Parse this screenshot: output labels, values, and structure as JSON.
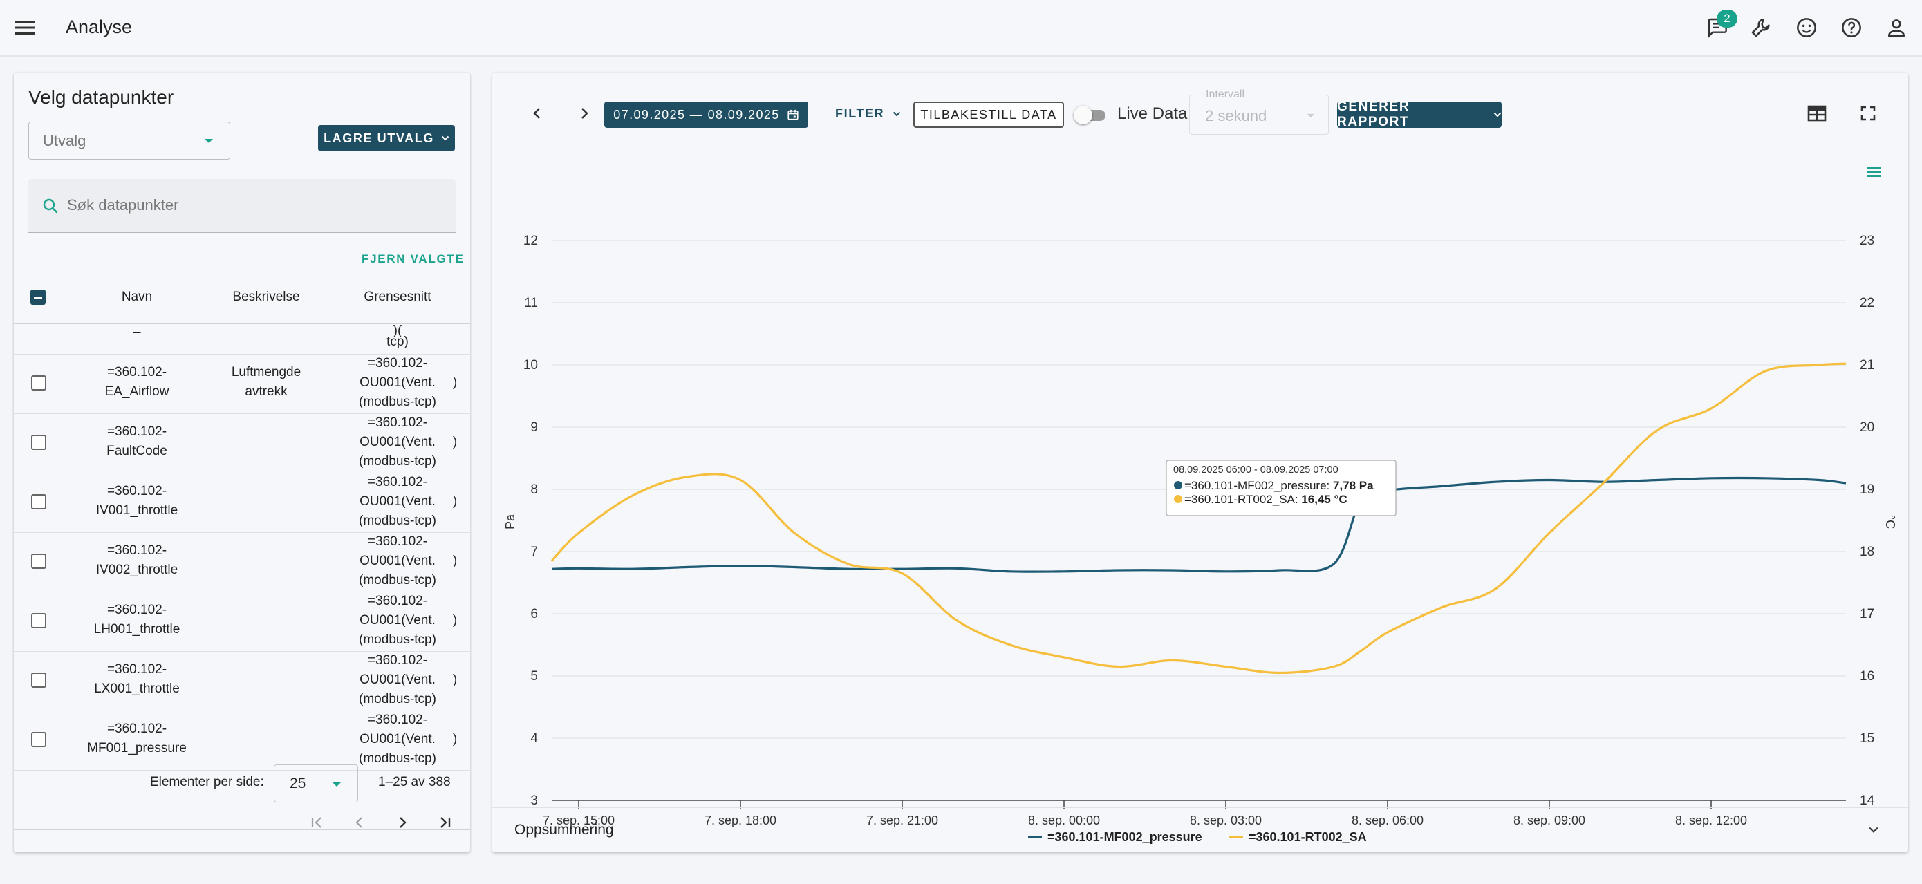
{
  "app": {
    "title": "Analyse",
    "notification_count": "2"
  },
  "left": {
    "title": "Velg datapunkter",
    "select_placeholder": "Utvalg",
    "save_selection": "LAGRE UTVALG",
    "search_placeholder": "Søk datapunkter",
    "remove_selected": "FJERN VALGTE",
    "columns": {
      "name": "Navn",
      "desc": "Beskrivelse",
      "iface": "Grensesnitt"
    },
    "partial_row": {
      "name": "_",
      "iface": "tcp)",
      "iface_top": ")("
    },
    "rows": [
      {
        "name1": "=360.102-",
        "name2": "EA_Airflow",
        "desc1": "Luftmengde",
        "desc2": "avtrekk",
        "if1": "=360.102-",
        "if2": "OU001(Vent.",
        "if3": "(modbus-tcp)",
        "paren": ")"
      },
      {
        "name1": "=360.102-",
        "name2": "FaultCode",
        "desc1": "",
        "desc2": "",
        "if1": "=360.102-",
        "if2": "OU001(Vent.",
        "if3": "(modbus-tcp)",
        "paren": ")"
      },
      {
        "name1": "=360.102-",
        "name2": "IV001_throttle",
        "desc1": "",
        "desc2": "",
        "if1": "=360.102-",
        "if2": "OU001(Vent.",
        "if3": "(modbus-tcp)",
        "paren": ")"
      },
      {
        "name1": "=360.102-",
        "name2": "IV002_throttle",
        "desc1": "",
        "desc2": "",
        "if1": "=360.102-",
        "if2": "OU001(Vent.",
        "if3": "(modbus-tcp)",
        "paren": ")"
      },
      {
        "name1": "=360.102-",
        "name2": "LH001_throttle",
        "desc1": "",
        "desc2": "",
        "if1": "=360.102-",
        "if2": "OU001(Vent.",
        "if3": "(modbus-tcp)",
        "paren": ")"
      },
      {
        "name1": "=360.102-",
        "name2": "LX001_throttle",
        "desc1": "",
        "desc2": "",
        "if1": "=360.102-",
        "if2": "OU001(Vent.",
        "if3": "(modbus-tcp)",
        "paren": ")"
      },
      {
        "name1": "=360.102-",
        "name2": "MF001_pressure",
        "desc1": "",
        "desc2": "",
        "if1": "=360.102-",
        "if2": "OU001(Vent.",
        "if3": "(modbus-tcp)",
        "paren": ")"
      }
    ],
    "per_page_label": "Elementer per side:",
    "per_page_value": "25",
    "range": "1–25 av 388"
  },
  "toolbar": {
    "date_range": "07.09.2025 — 08.09.2025",
    "filter": "FILTER",
    "reset": "TILBAKESTILL DATA",
    "live_label": "Live Data",
    "interval_label": "Intervall",
    "interval_value": "2 sekund",
    "report": "GENERER RAPPORT"
  },
  "chart_data": {
    "type": "line",
    "xlabels": [
      "7. sep. 15:00",
      "7. sep. 18:00",
      "7. sep. 21:00",
      "8. sep. 00:00",
      "8. sep. 03:00",
      "8. sep. 06:00",
      "8. sep. 09:00",
      "8. sep. 12:00"
    ],
    "x_hours": [
      14.5,
      15,
      16,
      17,
      18,
      19,
      20,
      21,
      22,
      23,
      24,
      25,
      26,
      27,
      28,
      29,
      29.5,
      30,
      31,
      32,
      33,
      34,
      35,
      36,
      37,
      38,
      38.5
    ],
    "y_left": {
      "label": "Pa",
      "range": [
        3,
        12
      ],
      "ticks": [
        "3",
        "4",
        "5",
        "6",
        "7",
        "8",
        "9",
        "10",
        "11",
        "12"
      ]
    },
    "y_right": {
      "label": "°C",
      "range": [
        14,
        23
      ],
      "ticks": [
        "14",
        "15",
        "16",
        "17",
        "18",
        "19",
        "20",
        "21",
        "22",
        "23"
      ]
    },
    "series": [
      {
        "name": "=360.101-MF002_pressure",
        "color": "#1f5a74",
        "axis": "left",
        "values": [
          6.72,
          6.73,
          6.72,
          6.75,
          6.77,
          6.75,
          6.72,
          6.72,
          6.73,
          6.68,
          6.68,
          6.7,
          6.7,
          6.68,
          6.7,
          6.8,
          7.8,
          7.98,
          8.05,
          8.12,
          8.15,
          8.12,
          8.15,
          8.18,
          8.18,
          8.15,
          8.1
        ]
      },
      {
        "name": "=360.101-RT002_SA",
        "color": "#f5be3c",
        "axis": "right",
        "values": [
          17.85,
          18.3,
          18.9,
          19.2,
          19.15,
          18.3,
          17.8,
          17.65,
          16.9,
          16.5,
          16.3,
          16.15,
          16.25,
          16.15,
          16.05,
          16.15,
          16.4,
          16.7,
          17.1,
          17.4,
          18.3,
          19.1,
          19.95,
          20.3,
          20.9,
          21.0,
          21.02
        ]
      }
    ],
    "tooltip": {
      "title": "08.09.2025 06:00 - 08.09.2025 07:00",
      "line1_label": "=360.101-MF002_pressure: ",
      "line1_value": "7,78 Pa",
      "line2_label": "=360.101-RT002_SA: ",
      "line2_value": "16,45 °C"
    },
    "legend_position": "bottom-center",
    "grid": true
  },
  "summary": {
    "label": "Oppsummering"
  }
}
